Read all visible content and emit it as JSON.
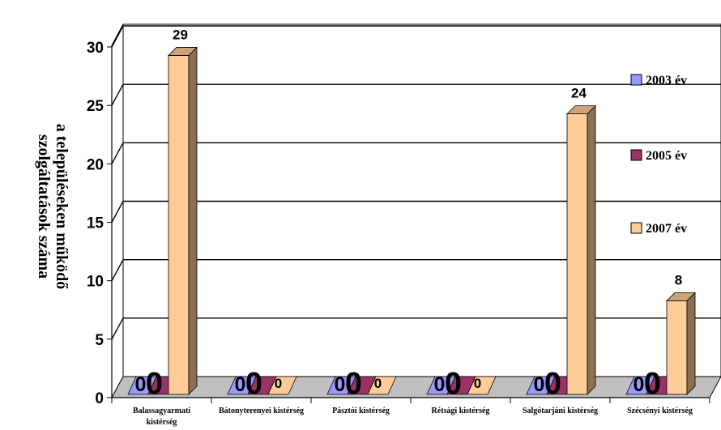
{
  "chart_data": {
    "type": "bar",
    "title": "",
    "ylabel": [
      "a településeken működő",
      "szolgáltatások száma"
    ],
    "xlabel": "",
    "ylim": [
      0,
      30
    ],
    "yticks": [
      "0",
      "5",
      "10",
      "15",
      "20",
      "25",
      "30"
    ],
    "grid": true,
    "legend_position": "right",
    "categories": [
      [
        "Balassagyarmati",
        "kistérség"
      ],
      [
        "Bátonyterenyei kistérség"
      ],
      [
        "Pásztói kistérség"
      ],
      [
        "Rétsági kistérség"
      ],
      [
        "Salgótarjáni kistérség"
      ],
      [
        "Szécsényi kistérség"
      ]
    ],
    "series": [
      {
        "name": "2003 év",
        "color": "#9999FF",
        "values": [
          0,
          0,
          0,
          0,
          0,
          0
        ],
        "labels": [
          "0",
          "0",
          "0",
          "0",
          "0",
          "0"
        ]
      },
      {
        "name": "2005 év",
        "color": "#993366",
        "values": [
          0,
          0,
          0,
          0,
          0,
          0
        ],
        "labels": [
          "0",
          "0",
          "0",
          "0",
          "0",
          "0"
        ]
      },
      {
        "name": "2007 év",
        "color": "#FFCC99",
        "values": [
          29,
          0,
          0,
          0,
          24,
          8
        ],
        "labels": [
          "29",
          "0",
          "0",
          "0",
          "24",
          "8"
        ]
      }
    ]
  }
}
